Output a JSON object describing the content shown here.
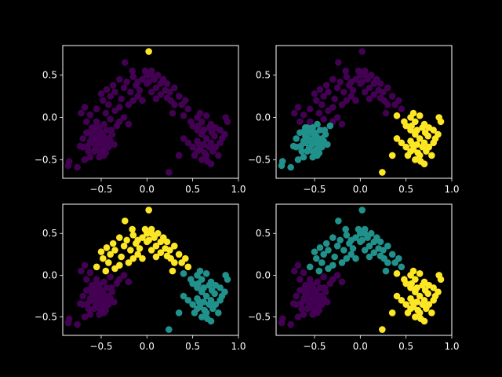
{
  "figure": {
    "background": "#000000",
    "foreground": "#ffffff"
  },
  "palette": {
    "0": "#440154",
    "1": "#21918c",
    "2": "#fde725"
  },
  "chart_data": [
    {
      "type": "scatter",
      "title": "",
      "xlabel": "",
      "ylabel": "",
      "xlim": [
        -0.92,
        1.0
      ],
      "ylim": [
        -0.72,
        0.85
      ],
      "xticks": [
        -0.5,
        0.0,
        0.5,
        1.0
      ],
      "xtick_labels": [
        "−0.5",
        "0.0",
        "0.5",
        "1.0"
      ],
      "yticks": [
        -0.5,
        0.0,
        0.5
      ],
      "ytick_labels": [
        "−0.5",
        "0.0",
        "0.5"
      ],
      "clustering": "1 cluster + outlier",
      "color_rule": [
        {
          "cluster": 0,
          "minX": -99,
          "maxX": 99,
          "minY": -99,
          "maxY": 0.75
        },
        {
          "cluster": 2,
          "minX": -99,
          "maxX": 99,
          "minY": 0.75,
          "maxY": 99
        }
      ]
    },
    {
      "type": "scatter",
      "title": "",
      "xlabel": "",
      "ylabel": "",
      "xlim": [
        -0.92,
        1.0
      ],
      "ylim": [
        -0.72,
        0.85
      ],
      "xticks": [
        -0.5,
        0.0,
        0.5,
        1.0
      ],
      "xtick_labels": [
        "−0.5",
        "0.0",
        "0.5",
        "1.0"
      ],
      "yticks": [
        -0.5,
        0.0,
        0.5
      ],
      "ytick_labels": [
        "−0.5",
        "0.0",
        "0.5"
      ],
      "clustering": "left / middle / right",
      "color_rule": [
        {
          "cluster": 1,
          "minX": -99,
          "maxX": -0.33,
          "minY": -99,
          "maxY": -0.07
        },
        {
          "cluster": 2,
          "minX": 0.33,
          "maxX": 99,
          "minY": -99,
          "maxY": 0.05
        },
        {
          "cluster": 2,
          "minX": 0.2,
          "maxX": 0.3,
          "minY": -99,
          "maxY": -0.6
        },
        {
          "cluster": 0,
          "minX": -99,
          "maxX": 99,
          "minY": -99,
          "maxY": 99
        }
      ]
    },
    {
      "type": "scatter",
      "title": "",
      "xlabel": "",
      "ylabel": "",
      "xlim": [
        -0.92,
        1.0
      ],
      "ylim": [
        -0.72,
        0.85
      ],
      "xticks": [
        -0.5,
        0.0,
        0.5,
        1.0
      ],
      "xtick_labels": [
        "−0.5",
        "0.0",
        "0.5",
        "1.0"
      ],
      "yticks": [
        -0.5,
        0.0,
        0.5
      ],
      "ytick_labels": [
        "−0.5",
        "0.0",
        "0.5"
      ],
      "clustering": "top arc / bottom-left / right",
      "color_rule": [
        {
          "cluster": 2,
          "minX": -0.55,
          "maxX": 0.55,
          "minY": 0.05,
          "maxY": 99
        },
        {
          "cluster": 1,
          "minX": 0.33,
          "maxX": 99,
          "minY": -99,
          "maxY": 0.05
        },
        {
          "cluster": 1,
          "minX": 0.2,
          "maxX": 0.3,
          "minY": -99,
          "maxY": -0.6
        },
        {
          "cluster": 0,
          "minX": -99,
          "maxX": 99,
          "minY": -99,
          "maxY": 99
        }
      ]
    },
    {
      "type": "scatter",
      "title": "",
      "xlabel": "",
      "ylabel": "",
      "xlim": [
        -0.92,
        1.0
      ],
      "ylim": [
        -0.72,
        0.85
      ],
      "xticks": [
        -0.5,
        0.0,
        0.5,
        1.0
      ],
      "xtick_labels": [
        "−0.5",
        "0.0",
        "0.5",
        "1.0"
      ],
      "yticks": [
        -0.5,
        0.0,
        0.5
      ],
      "ytick_labels": [
        "−0.5",
        "0.0",
        "0.5"
      ],
      "clustering": "upper arc / bottom-left / right",
      "color_rule": [
        {
          "cluster": 1,
          "minX": -0.55,
          "maxX": 0.55,
          "minY": 0.05,
          "maxY": 99
        },
        {
          "cluster": 2,
          "minX": 0.33,
          "maxX": 99,
          "minY": -99,
          "maxY": 0.05
        },
        {
          "cluster": 2,
          "minX": 0.2,
          "maxX": 0.3,
          "minY": -99,
          "maxY": -0.6
        },
        {
          "cluster": 0,
          "minX": -99,
          "maxX": 99,
          "minY": -99,
          "maxY": 99
        }
      ]
    }
  ],
  "points": [
    [
      -0.85,
      -0.52
    ],
    [
      -0.86,
      -0.57
    ],
    [
      -0.76,
      -0.59
    ],
    [
      -0.68,
      -0.5
    ],
    [
      -0.62,
      -0.47
    ],
    [
      -0.7,
      -0.35
    ],
    [
      -0.65,
      -0.34
    ],
    [
      -0.6,
      -0.3
    ],
    [
      -0.58,
      -0.2
    ],
    [
      -0.56,
      -0.15
    ],
    [
      -0.55,
      -0.1
    ],
    [
      -0.52,
      -0.12
    ],
    [
      -0.5,
      -0.18
    ],
    [
      -0.48,
      -0.22
    ],
    [
      -0.46,
      -0.25
    ],
    [
      -0.44,
      -0.3
    ],
    [
      -0.42,
      -0.35
    ],
    [
      -0.5,
      -0.28
    ],
    [
      -0.53,
      -0.32
    ],
    [
      -0.57,
      -0.25
    ],
    [
      -0.6,
      -0.22
    ],
    [
      -0.62,
      -0.28
    ],
    [
      -0.48,
      -0.38
    ],
    [
      -0.45,
      -0.42
    ],
    [
      -0.52,
      -0.4
    ],
    [
      -0.58,
      -0.4
    ],
    [
      -0.4,
      -0.28
    ],
    [
      -0.38,
      -0.2
    ],
    [
      -0.44,
      -0.15
    ],
    [
      -0.47,
      -0.08
    ],
    [
      -0.51,
      -0.2
    ],
    [
      -0.54,
      -0.27
    ],
    [
      -0.6,
      -0.12
    ],
    [
      -0.66,
      -0.18
    ],
    [
      -0.7,
      -0.25
    ],
    [
      -0.73,
      -0.34
    ],
    [
      -0.64,
      -0.4
    ],
    [
      -0.52,
      -0.47
    ],
    [
      -0.46,
      -0.33
    ],
    [
      -0.42,
      -0.25
    ],
    [
      -0.36,
      -0.32
    ],
    [
      -0.39,
      -0.15
    ],
    [
      -0.47,
      -0.45
    ],
    [
      -0.56,
      -0.36
    ],
    [
      -0.61,
      -0.16
    ],
    [
      -0.72,
      0.05
    ],
    [
      -0.68,
      0.12
    ],
    [
      -0.62,
      0.03
    ],
    [
      -0.55,
      0.1
    ],
    [
      -0.45,
      0.05
    ],
    [
      -0.4,
      -0.02
    ],
    [
      -0.35,
      0.08
    ],
    [
      -0.3,
      0.12
    ],
    [
      -0.42,
      0.15
    ],
    [
      -0.48,
      0.2
    ],
    [
      -0.5,
      0.28
    ],
    [
      -0.4,
      0.25
    ],
    [
      -0.35,
      0.3
    ],
    [
      -0.25,
      0.35
    ],
    [
      -0.28,
      0.22
    ],
    [
      -0.2,
      0.15
    ],
    [
      -0.25,
      0.0
    ],
    [
      -0.3,
      -0.05
    ],
    [
      -0.2,
      -0.08
    ],
    [
      -0.33,
      -0.1
    ],
    [
      -0.55,
      -0.05
    ],
    [
      -0.66,
      -0.05
    ],
    [
      -0.44,
      0.33
    ],
    [
      -0.37,
      0.38
    ],
    [
      -0.3,
      0.45
    ],
    [
      -0.22,
      0.42
    ],
    [
      -0.15,
      0.48
    ],
    [
      -0.12,
      0.38
    ],
    [
      -0.18,
      0.3
    ],
    [
      -0.1,
      0.25
    ],
    [
      -0.05,
      0.2
    ],
    [
      -0.15,
      0.2
    ],
    [
      -0.08,
      0.32
    ],
    [
      -0.16,
      0.55
    ],
    [
      -0.05,
      0.45
    ],
    [
      0.0,
      0.4
    ],
    [
      0.05,
      0.3
    ],
    [
      0.1,
      0.22
    ],
    [
      0.15,
      0.27
    ],
    [
      0.2,
      0.32
    ],
    [
      0.05,
      0.5
    ],
    [
      -0.02,
      0.55
    ],
    [
      0.02,
      0.42
    ],
    [
      0.08,
      0.45
    ],
    [
      0.1,
      0.35
    ],
    [
      0.12,
      0.5
    ],
    [
      0.18,
      0.45
    ],
    [
      0.25,
      0.3
    ],
    [
      0.22,
      0.4
    ],
    [
      0.15,
      0.4
    ],
    [
      -0.24,
      0.65
    ],
    [
      0.3,
      0.35
    ],
    [
      0.35,
      0.25
    ],
    [
      0.38,
      0.15
    ],
    [
      0.42,
      0.2
    ],
    [
      0.3,
      0.15
    ],
    [
      0.28,
      0.05
    ],
    [
      0.4,
      0.02
    ],
    [
      0.45,
      0.1
    ],
    [
      0.26,
      0.2
    ],
    [
      0.0,
      0.5
    ],
    [
      0.05,
      0.55
    ],
    [
      -0.1,
      0.42
    ],
    [
      0.22,
      0.23
    ],
    [
      0.02,
      0.78
    ],
    [
      0.55,
      0.0
    ],
    [
      0.6,
      -0.05
    ],
    [
      0.65,
      0.02
    ],
    [
      0.7,
      -0.08
    ],
    [
      0.75,
      -0.12
    ],
    [
      0.8,
      -0.15
    ],
    [
      0.85,
      -0.2
    ],
    [
      0.88,
      -0.05
    ],
    [
      0.86,
      0.0
    ],
    [
      0.5,
      -0.1
    ],
    [
      0.48,
      -0.05
    ],
    [
      0.55,
      -0.15
    ],
    [
      0.6,
      -0.2
    ],
    [
      0.65,
      -0.25
    ],
    [
      0.7,
      -0.3
    ],
    [
      0.75,
      -0.35
    ],
    [
      0.8,
      -0.3
    ],
    [
      0.72,
      -0.4
    ],
    [
      0.65,
      -0.45
    ],
    [
      0.6,
      -0.5
    ],
    [
      0.55,
      -0.4
    ],
    [
      0.5,
      -0.35
    ],
    [
      0.45,
      -0.3
    ],
    [
      0.4,
      -0.25
    ],
    [
      0.55,
      -0.28
    ],
    [
      0.62,
      -0.32
    ],
    [
      0.68,
      -0.35
    ],
    [
      0.58,
      -0.38
    ],
    [
      0.52,
      -0.45
    ],
    [
      0.66,
      -0.52
    ],
    [
      0.7,
      -0.55
    ],
    [
      0.56,
      -0.1
    ],
    [
      0.62,
      -0.15
    ],
    [
      0.74,
      -0.22
    ],
    [
      0.82,
      -0.25
    ],
    [
      0.78,
      -0.45
    ],
    [
      0.63,
      -0.42
    ],
    [
      0.57,
      -0.32
    ],
    [
      0.68,
      -0.12
    ],
    [
      0.71,
      -0.18
    ],
    [
      0.58,
      0.05
    ],
    [
      0.35,
      -0.45
    ],
    [
      0.24,
      -0.65
    ]
  ]
}
